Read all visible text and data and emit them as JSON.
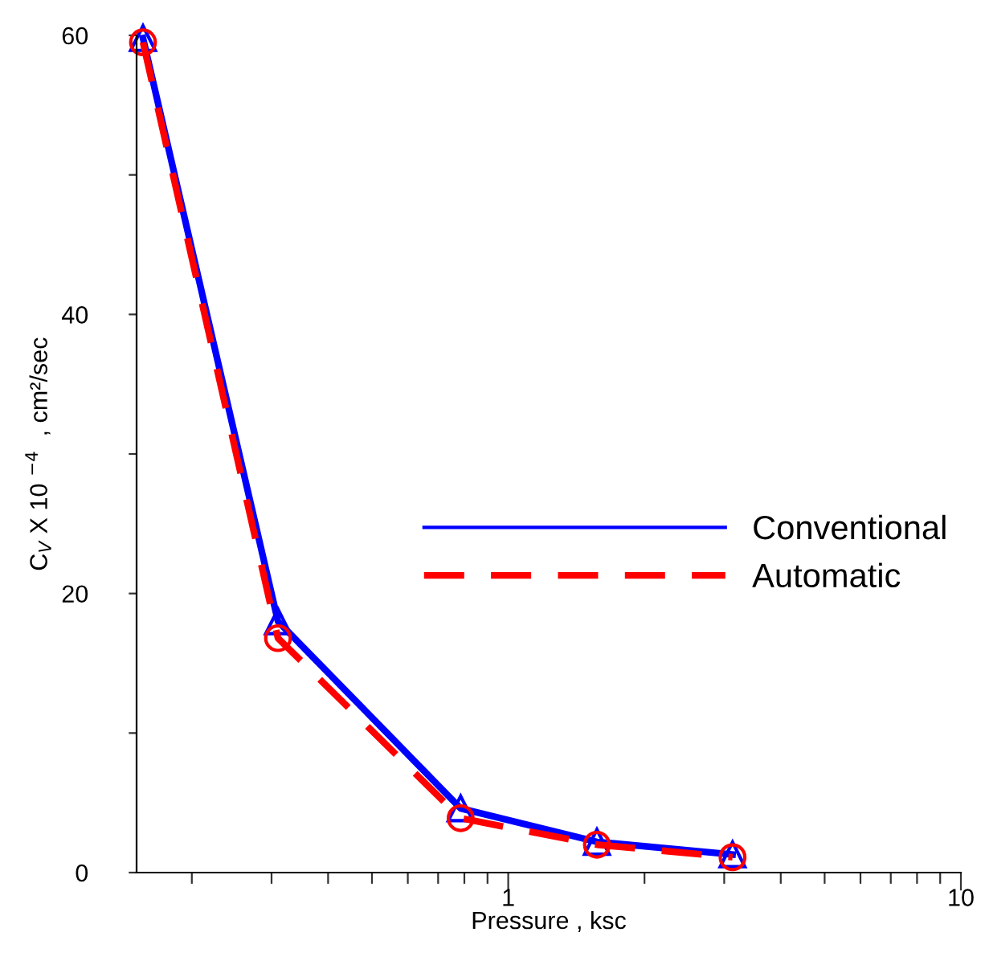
{
  "chart_data": {
    "type": "line",
    "xlabel": "Pressure , ksc",
    "ylabel": "C$_{V}$ X 10 $^{−4}$  , cm²/sec",
    "log": "x",
    "grid": false,
    "legend": "right",
    "x": [
      0.156,
      0.31,
      0.785,
      1.57,
      3.13
    ],
    "series": [
      {
        "name": "Conventional",
        "color": "#0000ff",
        "values": [
          59.8,
          18,
          4.6,
          2.2,
          1.3
        ],
        "marker": "triangle",
        "line_style": "solid"
      },
      {
        "name": "Automatic",
        "color": "#ff0000",
        "values": [
          59.5,
          16.8,
          3.9,
          2.0,
          1.1
        ],
        "marker": "circle",
        "line_style": "dashed"
      }
    ],
    "xlim": [
      0.151,
      10
    ],
    "xticks": [
      {
        "value": 0.2,
        "label": null
      },
      {
        "value": 0.3,
        "label": null
      },
      {
        "value": 0.4,
        "label": null
      },
      {
        "value": 0.5,
        "label": null
      },
      {
        "value": 0.6,
        "label": null
      },
      {
        "value": 0.7,
        "label": null
      },
      {
        "value": 0.8,
        "label": null
      },
      {
        "value": 0.9,
        "label": null
      },
      1,
      {
        "value": 2,
        "label": null
      },
      {
        "value": 3,
        "label": null
      },
      {
        "value": 4,
        "label": null
      },
      {
        "value": 5,
        "label": null
      },
      {
        "value": 6,
        "label": null
      },
      {
        "value": 7,
        "label": null
      },
      {
        "value": 8,
        "label": null
      },
      {
        "value": 9,
        "label": null
      },
      10
    ],
    "ylim": [
      0,
      60
    ],
    "yticks": [
      0,
      {
        "value": 10,
        "label": null
      },
      20,
      {
        "value": 30,
        "label": null
      },
      40,
      {
        "value": 50,
        "label": null
      },
      60
    ]
  }
}
